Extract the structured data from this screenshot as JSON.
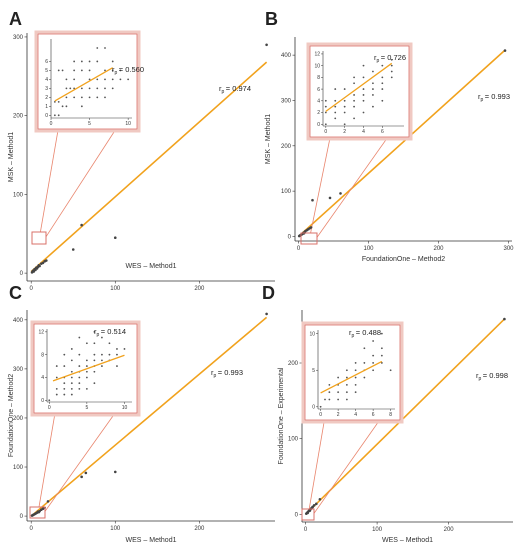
{
  "figure": {
    "panels": [
      "A",
      "B",
      "C",
      "D"
    ]
  },
  "chart_data": [
    {
      "panel": "A",
      "type": "scatter",
      "xlabel": "WES – Method1",
      "ylabel": "MSK – Method1",
      "xlim": [
        -5,
        290
      ],
      "ylim": [
        -10,
        305
      ],
      "xticks": [
        0,
        100,
        200
      ],
      "yticks": [
        0,
        100,
        200,
        300
      ],
      "points": [
        [
          1,
          1
        ],
        [
          2,
          3
        ],
        [
          3,
          2
        ],
        [
          4,
          5
        ],
        [
          5,
          4
        ],
        [
          6,
          7
        ],
        [
          7,
          6
        ],
        [
          8,
          8
        ],
        [
          9,
          10
        ],
        [
          10,
          9
        ],
        [
          12,
          12
        ],
        [
          14,
          13
        ],
        [
          16,
          15
        ],
        [
          18,
          16
        ],
        [
          50,
          30
        ],
        [
          60,
          61
        ],
        [
          100,
          45
        ],
        [
          280,
          290
        ]
      ],
      "fit": [
        [
          0,
          2
        ],
        [
          280,
          268
        ]
      ],
      "annotation": {
        "symbol": "r",
        "subscript": "p",
        "value": "= 0.974"
      },
      "inset": {
        "xlim": [
          0,
          10.5
        ],
        "ylim": [
          -0.3,
          8.5
        ],
        "xticks": [
          0,
          5,
          10
        ],
        "yticks": [
          0,
          1,
          2,
          3,
          4,
          5,
          6
        ],
        "points": [
          [
            0.5,
            0
          ],
          [
            1,
            0
          ],
          [
            1.5,
            1
          ],
          [
            2,
            1
          ],
          [
            2,
            2
          ],
          [
            3,
            2
          ],
          [
            3,
            3
          ],
          [
            4,
            1
          ],
          [
            4,
            2
          ],
          [
            4,
            3
          ],
          [
            5,
            2
          ],
          [
            5,
            3
          ],
          [
            5,
            4
          ],
          [
            6,
            2
          ],
          [
            6,
            3
          ],
          [
            6,
            4
          ],
          [
            7,
            2
          ],
          [
            7,
            3
          ],
          [
            7,
            5
          ],
          [
            8,
            3
          ],
          [
            8,
            4
          ],
          [
            8,
            5
          ],
          [
            9,
            4
          ],
          [
            9,
            5
          ],
          [
            10,
            4
          ],
          [
            2,
            4
          ],
          [
            3,
            4
          ],
          [
            3,
            5
          ],
          [
            4,
            5
          ],
          [
            5,
            5
          ],
          [
            5,
            6
          ],
          [
            6,
            6
          ],
          [
            4,
            6
          ],
          [
            7,
            4
          ],
          [
            8,
            6
          ],
          [
            1,
            5
          ],
          [
            1.5,
            5
          ],
          [
            2,
            3
          ],
          [
            3,
            6
          ],
          [
            6,
            7.5
          ],
          [
            7,
            7.5
          ],
          [
            1,
            1.5
          ],
          [
            0.5,
            1.5
          ],
          [
            2.5,
            3
          ]
        ],
        "fit": [
          [
            0.5,
            1.6
          ],
          [
            8,
            5.3
          ]
        ],
        "annotation": {
          "symbol": "r",
          "subscript": "p",
          "value": "= 0.560"
        }
      }
    },
    {
      "panel": "B",
      "type": "scatter",
      "xlabel": "FoundationOne – Method2",
      "ylabel": "MSK – Method1",
      "xlim": [
        -5,
        305
      ],
      "ylim": [
        -10,
        440
      ],
      "xticks": [
        0,
        100,
        200,
        300
      ],
      "yticks": [
        0,
        100,
        200,
        300,
        400
      ],
      "points": [
        [
          1,
          1
        ],
        [
          2,
          2
        ],
        [
          3,
          3
        ],
        [
          4,
          4
        ],
        [
          5,
          5
        ],
        [
          6,
          6
        ],
        [
          7,
          8
        ],
        [
          8,
          7
        ],
        [
          9,
          10
        ],
        [
          10,
          12
        ],
        [
          12,
          14
        ],
        [
          14,
          16
        ],
        [
          16,
          18
        ],
        [
          18,
          20
        ],
        [
          20,
          80
        ],
        [
          45,
          85
        ],
        [
          60,
          95
        ],
        [
          295,
          410
        ]
      ],
      "fit": [
        [
          0,
          0
        ],
        [
          295,
          411
        ]
      ],
      "annotation": {
        "symbol": "r",
        "subscript": "p",
        "value": "= 0.993"
      },
      "inset": {
        "xlim": [
          -0.3,
          8.3
        ],
        "ylim": [
          -0.3,
          12.5
        ],
        "xticks": [
          0,
          2,
          4,
          6
        ],
        "yticks": [
          0,
          2,
          4,
          6,
          8,
          10,
          12
        ],
        "points": [
          [
            0,
            0
          ],
          [
            1,
            1
          ],
          [
            1,
            2
          ],
          [
            2,
            2
          ],
          [
            2,
            3
          ],
          [
            2,
            4
          ],
          [
            3,
            3
          ],
          [
            3,
            4
          ],
          [
            3,
            5
          ],
          [
            4,
            4
          ],
          [
            4,
            5
          ],
          [
            4,
            6
          ],
          [
            5,
            5
          ],
          [
            5,
            6
          ],
          [
            5,
            7
          ],
          [
            6,
            6
          ],
          [
            6,
            7
          ],
          [
            6,
            8
          ],
          [
            7,
            8
          ],
          [
            7,
            9
          ],
          [
            0,
            2
          ],
          [
            0,
            4
          ],
          [
            1,
            4
          ],
          [
            1,
            6
          ],
          [
            2,
            6
          ],
          [
            3,
            7
          ],
          [
            4,
            8
          ],
          [
            5,
            9
          ],
          [
            6,
            10
          ],
          [
            7,
            11
          ],
          [
            7,
            10
          ],
          [
            5,
            3
          ],
          [
            6,
            4
          ],
          [
            4,
            2
          ],
          [
            3,
            1
          ],
          [
            2,
            0
          ],
          [
            4,
            10
          ],
          [
            3,
            8
          ],
          [
            1,
            3
          ],
          [
            0,
            3
          ]
        ],
        "fit": [
          [
            0,
            2.2
          ],
          [
            7,
            10.4
          ]
        ],
        "annotation": {
          "symbol": "r",
          "subscript": "p",
          "value": "= 0.726"
        }
      }
    },
    {
      "panel": "C",
      "type": "scatter",
      "xlabel": "WES – Method1",
      "ylabel": "FoundationOne – Method2",
      "xlim": [
        -5,
        290
      ],
      "ylim": [
        -10,
        420
      ],
      "xticks": [
        0,
        100,
        200
      ],
      "yticks": [
        0,
        100,
        200,
        300,
        400
      ],
      "points": [
        [
          1,
          1
        ],
        [
          2,
          2
        ],
        [
          3,
          3
        ],
        [
          4,
          4
        ],
        [
          5,
          5
        ],
        [
          6,
          6
        ],
        [
          7,
          7
        ],
        [
          8,
          9
        ],
        [
          9,
          8
        ],
        [
          10,
          10
        ],
        [
          12,
          13
        ],
        [
          14,
          15
        ],
        [
          16,
          17
        ],
        [
          20,
          30
        ],
        [
          60,
          80
        ],
        [
          65,
          88
        ],
        [
          100,
          90
        ],
        [
          280,
          412
        ]
      ],
      "fit": [
        [
          0,
          0
        ],
        [
          280,
          405
        ]
      ],
      "annotation": {
        "symbol": "r",
        "subscript": "p",
        "value": "= 0.993"
      },
      "inset": {
        "xlim": [
          -0.3,
          11
        ],
        "ylim": [
          -0.3,
          12.5
        ],
        "xticks": [
          0,
          5,
          10
        ],
        "yticks": [
          0,
          4,
          8,
          12
        ],
        "points": [
          [
            0,
            0
          ],
          [
            1,
            1
          ],
          [
            1,
            2
          ],
          [
            2,
            2
          ],
          [
            2,
            3
          ],
          [
            2,
            4
          ],
          [
            3,
            2
          ],
          [
            3,
            3
          ],
          [
            3,
            4
          ],
          [
            3,
            5
          ],
          [
            4,
            3
          ],
          [
            4,
            4
          ],
          [
            4,
            5
          ],
          [
            4,
            6
          ],
          [
            5,
            4
          ],
          [
            5,
            5
          ],
          [
            5,
            6
          ],
          [
            5,
            7
          ],
          [
            6,
            5
          ],
          [
            6,
            6
          ],
          [
            6,
            7
          ],
          [
            6,
            8
          ],
          [
            7,
            6
          ],
          [
            7,
            7
          ],
          [
            7,
            8
          ],
          [
            8,
            7
          ],
          [
            8,
            8
          ],
          [
            9,
            8
          ],
          [
            9,
            9
          ],
          [
            10,
            9
          ],
          [
            1,
            4
          ],
          [
            1,
            6
          ],
          [
            2,
            6
          ],
          [
            2,
            8
          ],
          [
            3,
            7
          ],
          [
            3,
            9
          ],
          [
            4,
            8
          ],
          [
            5,
            10
          ],
          [
            6,
            10
          ],
          [
            7,
            11
          ],
          [
            8,
            10
          ],
          [
            9,
            6
          ],
          [
            2,
            1
          ],
          [
            3,
            1
          ],
          [
            4,
            2
          ],
          [
            5,
            2
          ],
          [
            6,
            3
          ],
          [
            4,
            11
          ],
          [
            6,
            12
          ]
        ],
        "fit": [
          [
            0.5,
            3.4
          ],
          [
            10,
            7.9
          ]
        ],
        "annotation": {
          "symbol": "r",
          "subscript": "p",
          "value": "= 0.514"
        }
      }
    },
    {
      "panel": "D",
      "type": "scatter",
      "xlabel": "WES – Method1",
      "ylabel": "FoundationOne – Experimental",
      "xlim": [
        -5,
        290
      ],
      "ylim": [
        -10,
        270
      ],
      "xticks": [
        0,
        100,
        200
      ],
      "yticks": [
        0,
        100,
        200
      ],
      "points": [
        [
          1,
          1
        ],
        [
          2,
          2
        ],
        [
          3,
          2
        ],
        [
          3,
          3
        ],
        [
          4,
          4
        ],
        [
          5,
          5
        ],
        [
          6,
          5
        ],
        [
          7,
          7
        ],
        [
          8,
          8
        ],
        [
          9,
          9
        ],
        [
          10,
          10
        ],
        [
          12,
          12
        ],
        [
          15,
          14
        ],
        [
          20,
          20
        ],
        [
          278,
          258
        ]
      ],
      "fit": [
        [
          0,
          0
        ],
        [
          278,
          258
        ]
      ],
      "annotation": {
        "symbol": "r",
        "subscript": "p",
        "value": "= 0.998"
      },
      "inset": {
        "xlim": [
          -0.3,
          8.5
        ],
        "ylim": [
          -0.3,
          10.5
        ],
        "xticks": [
          0,
          2,
          4,
          6,
          8
        ],
        "yticks": [
          0,
          5,
          10
        ],
        "points": [
          [
            0,
            0
          ],
          [
            0.5,
            1
          ],
          [
            1,
            1
          ],
          [
            1,
            2
          ],
          [
            2,
            1
          ],
          [
            2,
            2
          ],
          [
            2,
            3
          ],
          [
            3,
            2
          ],
          [
            3,
            3
          ],
          [
            3,
            4
          ],
          [
            4,
            3
          ],
          [
            4,
            4
          ],
          [
            4,
            5
          ],
          [
            5,
            4
          ],
          [
            5,
            5
          ],
          [
            5,
            6
          ],
          [
            6,
            5
          ],
          [
            6,
            6
          ],
          [
            6,
            7
          ],
          [
            7,
            6
          ],
          [
            7,
            7
          ],
          [
            7,
            8
          ],
          [
            1,
            3
          ],
          [
            2,
            4
          ],
          [
            3,
            1
          ],
          [
            4,
            6
          ],
          [
            5,
            8
          ],
          [
            6,
            9
          ],
          [
            7,
            10
          ],
          [
            8,
            5
          ],
          [
            4,
            2
          ],
          [
            3,
            5
          ]
        ],
        "fit": [
          [
            0,
            1.9
          ],
          [
            7,
            6.2
          ]
        ],
        "annotation": {
          "symbol": "r",
          "subscript": "p",
          "value": "= 0.488"
        }
      }
    }
  ]
}
